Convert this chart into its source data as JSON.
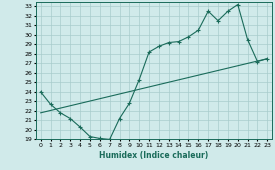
{
  "xlabel": "Humidex (Indice chaleur)",
  "bg_color": "#d0eaea",
  "grid_color": "#a8cccc",
  "line_color": "#1a6b5a",
  "xlim": [
    -0.5,
    23.5
  ],
  "ylim": [
    19,
    33.5
  ],
  "xticks": [
    0,
    1,
    2,
    3,
    4,
    5,
    6,
    7,
    8,
    9,
    10,
    11,
    12,
    13,
    14,
    15,
    16,
    17,
    18,
    19,
    20,
    21,
    22,
    23
  ],
  "yticks": [
    19,
    20,
    21,
    22,
    23,
    24,
    25,
    26,
    27,
    28,
    29,
    30,
    31,
    32,
    33
  ],
  "line1_x": [
    0,
    1,
    2,
    3,
    4,
    5,
    6,
    7,
    8,
    9,
    10,
    11,
    12,
    13,
    14,
    15,
    16,
    17,
    18,
    19,
    20,
    21,
    22,
    23
  ],
  "line1_y": [
    24.0,
    22.7,
    21.8,
    21.2,
    20.3,
    19.3,
    19.1,
    19.0,
    21.2,
    22.8,
    25.3,
    28.2,
    28.8,
    29.2,
    29.3,
    29.8,
    30.5,
    32.5,
    31.5,
    32.5,
    33.2,
    29.5,
    27.2,
    27.5
  ],
  "line2_x": [
    0,
    23
  ],
  "line2_y": [
    21.8,
    27.5
  ]
}
